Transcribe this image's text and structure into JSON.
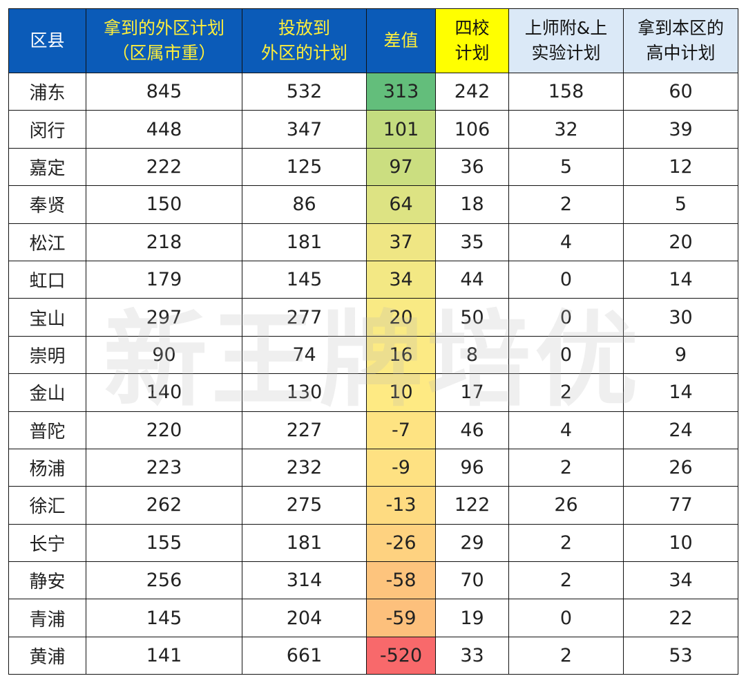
{
  "table": {
    "headers": [
      {
        "line1": "区县",
        "line2": ""
      },
      {
        "line1": "拿到的外区计划",
        "line2": "（区属市重）"
      },
      {
        "line1": "投放到",
        "line2": "外区的计划"
      },
      {
        "line1": "差值",
        "line2": ""
      },
      {
        "line1": "四校",
        "line2": "计划"
      },
      {
        "line1": "上师附&上",
        "line2": "实验计划"
      },
      {
        "line1": "拿到本区的",
        "line2": "高中计划"
      }
    ],
    "rows": [
      [
        "浦东",
        "845",
        "532",
        "313",
        "242",
        "158",
        "60"
      ],
      [
        "闵行",
        "448",
        "347",
        "101",
        "106",
        "32",
        "39"
      ],
      [
        "嘉定",
        "222",
        "125",
        "97",
        "36",
        "5",
        "12"
      ],
      [
        "奉贤",
        "150",
        "86",
        "64",
        "18",
        "2",
        "5"
      ],
      [
        "松江",
        "218",
        "181",
        "37",
        "35",
        "4",
        "20"
      ],
      [
        "虹口",
        "179",
        "145",
        "34",
        "44",
        "0",
        "14"
      ],
      [
        "宝山",
        "297",
        "277",
        "20",
        "50",
        "0",
        "30"
      ],
      [
        "崇明",
        "90",
        "74",
        "16",
        "8",
        "0",
        "9"
      ],
      [
        "金山",
        "140",
        "130",
        "10",
        "17",
        "2",
        "14"
      ],
      [
        "普陀",
        "220",
        "227",
        "-7",
        "46",
        "4",
        "24"
      ],
      [
        "杨浦",
        "223",
        "232",
        "-9",
        "96",
        "2",
        "26"
      ],
      [
        "徐汇",
        "262",
        "275",
        "-13",
        "122",
        "26",
        "77"
      ],
      [
        "长宁",
        "155",
        "181",
        "-26",
        "29",
        "2",
        "10"
      ],
      [
        "静安",
        "256",
        "314",
        "-58",
        "70",
        "2",
        "34"
      ],
      [
        "青浦",
        "145",
        "204",
        "-59",
        "19",
        "0",
        "22"
      ],
      [
        "黄浦",
        "141",
        "661",
        "-520",
        "33",
        "2",
        "53"
      ]
    ],
    "diff_colors": [
      "#63be7b",
      "#c4dc7f",
      "#cbde80",
      "#dde383",
      "#efe684",
      "#f3e884",
      "#f9ea84",
      "#fcea84",
      "#feea83",
      "#fee382",
      "#fee182",
      "#fedb81",
      "#fed280",
      "#fdc47d",
      "#fdc07c",
      "#f8696b"
    ]
  },
  "watermark": "新王牌培优"
}
